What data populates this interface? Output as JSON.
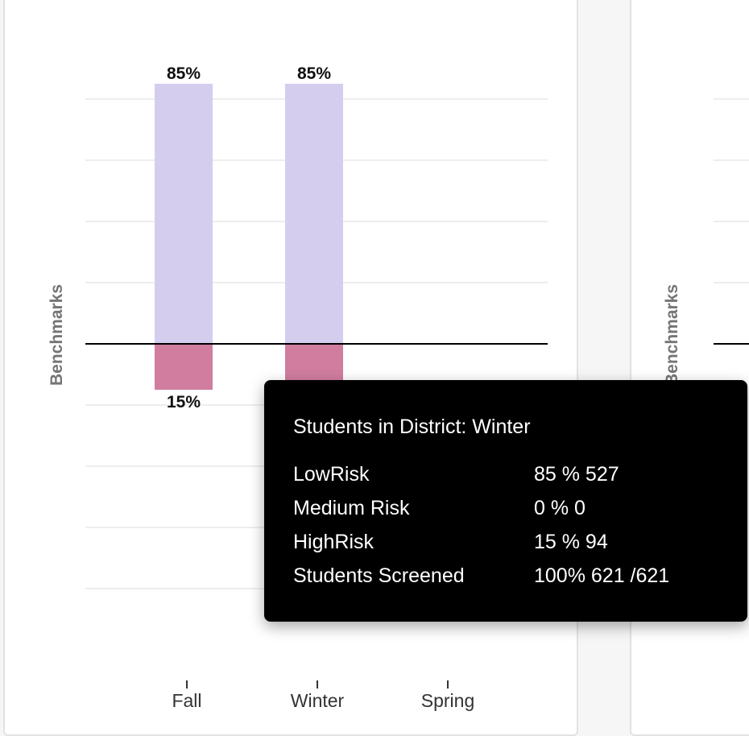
{
  "chart_data": {
    "type": "bar",
    "stacked": "diverging",
    "categories": [
      "Fall",
      "Winter",
      "Spring"
    ],
    "series": [
      {
        "name": "LowRisk",
        "values": [
          85,
          85,
          null
        ],
        "color": "#d5cdee",
        "direction": "up"
      },
      {
        "name": "HighRisk",
        "values": [
          15,
          15,
          null
        ],
        "color": "#d07d9f",
        "direction": "down"
      }
    ],
    "data_labels_top": [
      "85%",
      "85%",
      ""
    ],
    "data_labels_bottom": [
      "15%",
      "",
      ""
    ],
    "ylabel": "Benchmarks",
    "ylim_top": 85,
    "ylim_bottom": 85,
    "grid": true
  },
  "tooltip": {
    "title": "Students in District: Winter",
    "rows": [
      {
        "label": "LowRisk",
        "value": "85 % 527"
      },
      {
        "label": "Medium Risk",
        "value": "0 % 0"
      },
      {
        "label": "HighRisk",
        "value": "15 % 94"
      },
      {
        "label": "Students Screened",
        "value": "100% 621 /621"
      }
    ]
  },
  "right_panel": {
    "ylabel": "Benchmarks"
  }
}
